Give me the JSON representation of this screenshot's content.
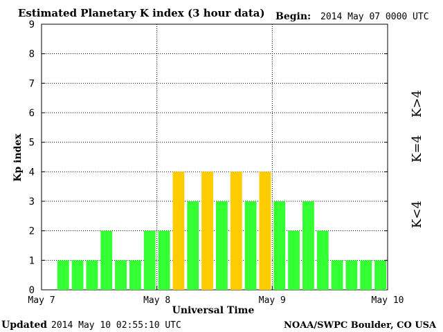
{
  "header": {
    "title": "Estimated Planetary K index (3 hour data)",
    "begin_label": "Begin:",
    "begin_value": "2014 May 07 0000 UTC"
  },
  "footer": {
    "updated_label": "Updated",
    "updated_value": "2014 May 10 02:55:10 UTC",
    "source": "NOAA/SWPC Boulder, CO USA"
  },
  "legend": {
    "k_less_4": {
      "label": "K<4",
      "color": "#33ff33"
    },
    "k_eq_4": {
      "label": "K=4",
      "color": "#ffcc00"
    },
    "k_greater_4": {
      "label": "K>4",
      "color": "#ff3300"
    }
  },
  "chart_data": {
    "type": "bar",
    "title": "Estimated Planetary K index (3 hour data)",
    "xlabel": "Universal Time",
    "ylabel": "Kp index",
    "ylim": [
      0,
      9
    ],
    "yticks": [
      "0",
      "1",
      "2",
      "3",
      "4",
      "5",
      "6",
      "7",
      "8",
      "9"
    ],
    "xticks": [
      "May 7",
      "May 8",
      "May 9",
      "May 10"
    ],
    "grid": true,
    "bar_interval_hours": 3,
    "values": [
      1,
      1,
      1,
      2,
      1,
      1,
      2,
      2,
      4,
      3,
      4,
      3,
      4,
      3,
      4,
      3,
      2,
      3,
      2,
      1,
      1,
      1,
      1
    ]
  }
}
